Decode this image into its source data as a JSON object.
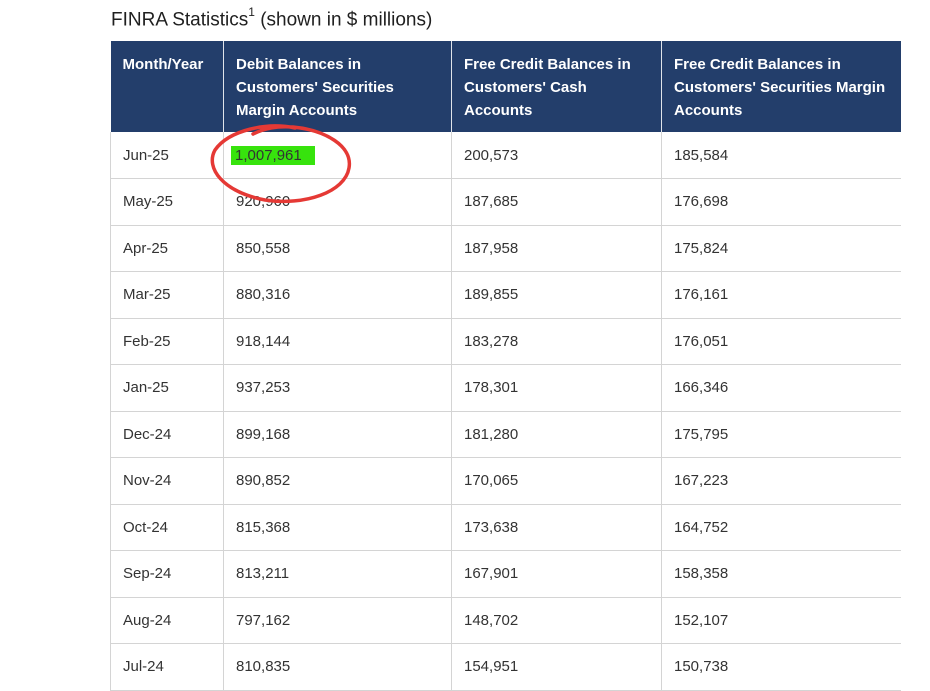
{
  "title": {
    "main": "FINRA Statistics",
    "footnote": "1",
    "suffix": " (shown in $ millions)"
  },
  "table": {
    "headers": [
      "Month/Year",
      "Debit Balances in Customers' Securities Margin Accounts",
      "Free Credit Balances in Customers' Cash Accounts",
      "Free Credit Balances in Customers' Securities Margin Accounts"
    ],
    "rows": [
      [
        "Jun-25",
        "1,007,961",
        "200,573",
        "185,584"
      ],
      [
        "May-25",
        "920,960",
        "187,685",
        "176,698"
      ],
      [
        "Apr-25",
        "850,558",
        "187,958",
        "175,824"
      ],
      [
        "Mar-25",
        "880,316",
        "189,855",
        "176,161"
      ],
      [
        "Feb-25",
        "918,144",
        "183,278",
        "176,051"
      ],
      [
        "Jan-25",
        "937,253",
        "178,301",
        "166,346"
      ],
      [
        "Dec-24",
        "899,168",
        "181,280",
        "175,795"
      ],
      [
        "Nov-24",
        "890,852",
        "170,065",
        "167,223"
      ],
      [
        "Oct-24",
        "815,368",
        "173,638",
        "164,752"
      ],
      [
        "Sep-24",
        "813,211",
        "167,901",
        "158,358"
      ],
      [
        "Aug-24",
        "797,162",
        "148,702",
        "152,107"
      ],
      [
        "Jul-24",
        "810,835",
        "154,951",
        "150,738"
      ]
    ]
  },
  "colors": {
    "header_bg": "#233e6b",
    "highlight": "#37e30d",
    "annotation": "#e53935"
  }
}
